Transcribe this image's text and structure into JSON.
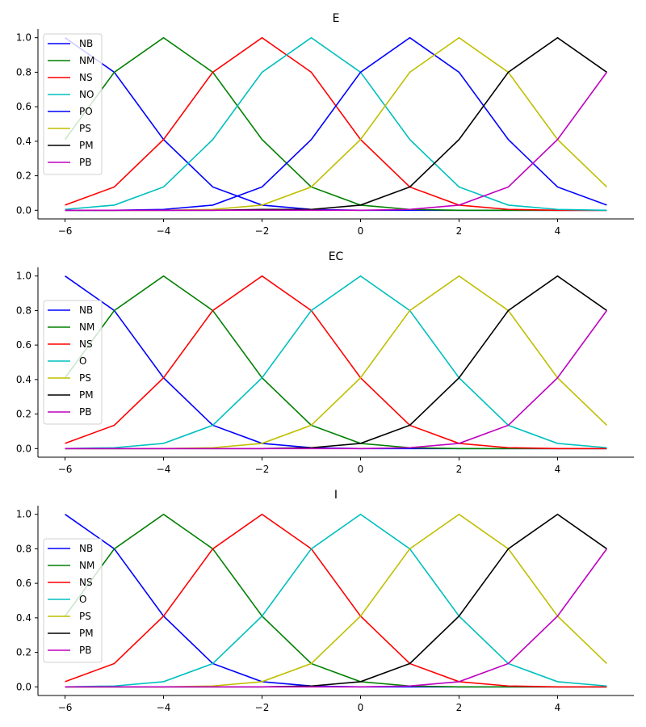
{
  "chart_data": [
    {
      "type": "line",
      "title": "E",
      "x": [
        -6,
        -5,
        -4,
        -3,
        -2,
        -1,
        0,
        1,
        2,
        3,
        4,
        5
      ],
      "xticks": [
        -6,
        -4,
        -2,
        0,
        2,
        4
      ],
      "yticks": [
        0.0,
        0.2,
        0.4,
        0.6,
        0.8,
        1.0
      ],
      "xlim": [
        -6.55,
        5.55
      ],
      "ylim": [
        -0.05,
        1.05
      ],
      "legend_position": "upper-left",
      "series": [
        {
          "name": "NB",
          "color": "#0000ff",
          "values": [
            1.0,
            0.8,
            0.41,
            0.135,
            0.03,
            0.005,
            0.0,
            0.0,
            0.0,
            0.0,
            0.0,
            0.0
          ]
        },
        {
          "name": "NM",
          "color": "#008000",
          "values": [
            0.41,
            0.8,
            1.0,
            0.8,
            0.41,
            0.135,
            0.03,
            0.005,
            0.0,
            0.0,
            0.0,
            0.0
          ]
        },
        {
          "name": "NS",
          "color": "#ff0000",
          "values": [
            0.03,
            0.135,
            0.41,
            0.8,
            1.0,
            0.8,
            0.41,
            0.135,
            0.03,
            0.005,
            0.0,
            0.0
          ]
        },
        {
          "name": "NO",
          "color": "#00bfbf",
          "values": [
            0.005,
            0.03,
            0.135,
            0.41,
            0.8,
            1.0,
            0.8,
            0.41,
            0.135,
            0.03,
            0.005,
            0.0
          ]
        },
        {
          "name": "PO",
          "color": "#0000ff",
          "values": [
            0.0,
            0.0,
            0.005,
            0.03,
            0.135,
            0.41,
            0.8,
            1.0,
            0.8,
            0.41,
            0.135,
            0.03
          ]
        },
        {
          "name": "PS",
          "color": "#bfbf00",
          "values": [
            0.0,
            0.0,
            0.0,
            0.005,
            0.03,
            0.135,
            0.41,
            0.8,
            1.0,
            0.8,
            0.41,
            0.135
          ]
        },
        {
          "name": "PM",
          "color": "#000000",
          "values": [
            0.0,
            0.0,
            0.0,
            0.0,
            0.005,
            0.005,
            0.03,
            0.135,
            0.41,
            0.8,
            1.0,
            0.8
          ]
        },
        {
          "name": "PB",
          "color": "#bf00bf",
          "values": [
            0.0,
            0.0,
            0.0,
            0.0,
            0.0,
            0.0,
            0.0,
            0.005,
            0.03,
            0.135,
            0.41,
            0.8
          ]
        }
      ]
    },
    {
      "type": "line",
      "title": "EC",
      "x": [
        -6,
        -5,
        -4,
        -3,
        -2,
        -1,
        0,
        1,
        2,
        3,
        4,
        5
      ],
      "xticks": [
        -6,
        -4,
        -2,
        0,
        2,
        4
      ],
      "yticks": [
        0.0,
        0.2,
        0.4,
        0.6,
        0.8,
        1.0
      ],
      "xlim": [
        -6.55,
        5.55
      ],
      "ylim": [
        -0.05,
        1.05
      ],
      "legend_position": "center-left",
      "series": [
        {
          "name": "NB",
          "color": "#0000ff",
          "values": [
            1.0,
            0.8,
            0.41,
            0.135,
            0.03,
            0.005,
            0.0,
            0.0,
            0.0,
            0.0,
            0.0,
            0.0
          ]
        },
        {
          "name": "NM",
          "color": "#008000",
          "values": [
            0.41,
            0.8,
            1.0,
            0.8,
            0.41,
            0.135,
            0.03,
            0.005,
            0.0,
            0.0,
            0.0,
            0.0
          ]
        },
        {
          "name": "NS",
          "color": "#ff0000",
          "values": [
            0.03,
            0.135,
            0.41,
            0.8,
            1.0,
            0.8,
            0.41,
            0.135,
            0.03,
            0.005,
            0.0,
            0.0
          ]
        },
        {
          "name": "O",
          "color": "#00bfbf",
          "values": [
            0.0,
            0.005,
            0.03,
            0.135,
            0.41,
            0.8,
            1.0,
            0.8,
            0.41,
            0.135,
            0.03,
            0.005
          ]
        },
        {
          "name": "PS",
          "color": "#bfbf00",
          "values": [
            0.0,
            0.0,
            0.0,
            0.005,
            0.03,
            0.135,
            0.41,
            0.8,
            1.0,
            0.8,
            0.41,
            0.135
          ]
        },
        {
          "name": "PM",
          "color": "#000000",
          "values": [
            0.0,
            0.0,
            0.0,
            0.0,
            0.0,
            0.005,
            0.03,
            0.135,
            0.41,
            0.8,
            1.0,
            0.8
          ]
        },
        {
          "name": "PB",
          "color": "#bf00bf",
          "values": [
            0.0,
            0.0,
            0.0,
            0.0,
            0.0,
            0.0,
            0.0,
            0.005,
            0.03,
            0.135,
            0.41,
            0.8
          ]
        }
      ]
    },
    {
      "type": "line",
      "title": "I",
      "x": [
        -6,
        -5,
        -4,
        -3,
        -2,
        -1,
        0,
        1,
        2,
        3,
        4,
        5
      ],
      "xticks": [
        -6,
        -4,
        -2,
        0,
        2,
        4
      ],
      "yticks": [
        0.0,
        0.2,
        0.4,
        0.6,
        0.8,
        1.0
      ],
      "xlim": [
        -6.55,
        5.55
      ],
      "ylim": [
        -0.05,
        1.05
      ],
      "legend_position": "center-left",
      "series": [
        {
          "name": "NB",
          "color": "#0000ff",
          "values": [
            1.0,
            0.8,
            0.41,
            0.135,
            0.03,
            0.005,
            0.0,
            0.0,
            0.0,
            0.0,
            0.0,
            0.0
          ]
        },
        {
          "name": "NM",
          "color": "#008000",
          "values": [
            0.41,
            0.8,
            1.0,
            0.8,
            0.41,
            0.135,
            0.03,
            0.005,
            0.0,
            0.0,
            0.0,
            0.0
          ]
        },
        {
          "name": "NS",
          "color": "#ff0000",
          "values": [
            0.03,
            0.135,
            0.41,
            0.8,
            1.0,
            0.8,
            0.41,
            0.135,
            0.03,
            0.005,
            0.0,
            0.0
          ]
        },
        {
          "name": "O",
          "color": "#00bfbf",
          "values": [
            0.0,
            0.005,
            0.03,
            0.135,
            0.41,
            0.8,
            1.0,
            0.8,
            0.41,
            0.135,
            0.03,
            0.005
          ]
        },
        {
          "name": "PS",
          "color": "#bfbf00",
          "values": [
            0.0,
            0.0,
            0.0,
            0.005,
            0.03,
            0.135,
            0.41,
            0.8,
            1.0,
            0.8,
            0.41,
            0.135
          ]
        },
        {
          "name": "PM",
          "color": "#000000",
          "values": [
            0.0,
            0.0,
            0.0,
            0.0,
            0.0,
            0.005,
            0.03,
            0.135,
            0.41,
            0.8,
            1.0,
            0.8
          ]
        },
        {
          "name": "PB",
          "color": "#bf00bf",
          "values": [
            0.0,
            0.0,
            0.0,
            0.0,
            0.0,
            0.0,
            0.0,
            0.005,
            0.03,
            0.135,
            0.41,
            0.8
          ]
        }
      ]
    }
  ]
}
